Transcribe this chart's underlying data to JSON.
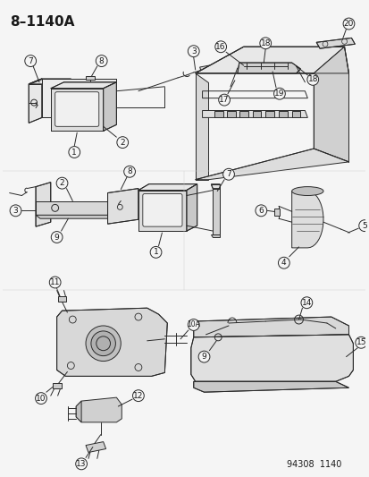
{
  "title": "8–1140A",
  "footer": "94308  1140",
  "bg_color": "#f5f5f5",
  "line_color": "#2a2a2a",
  "text_color": "#1a1a1a",
  "title_fontsize": 11,
  "footer_fontsize": 7,
  "label_fontsize": 6.5,
  "figsize": [
    4.14,
    5.33
  ],
  "dpi": 100
}
